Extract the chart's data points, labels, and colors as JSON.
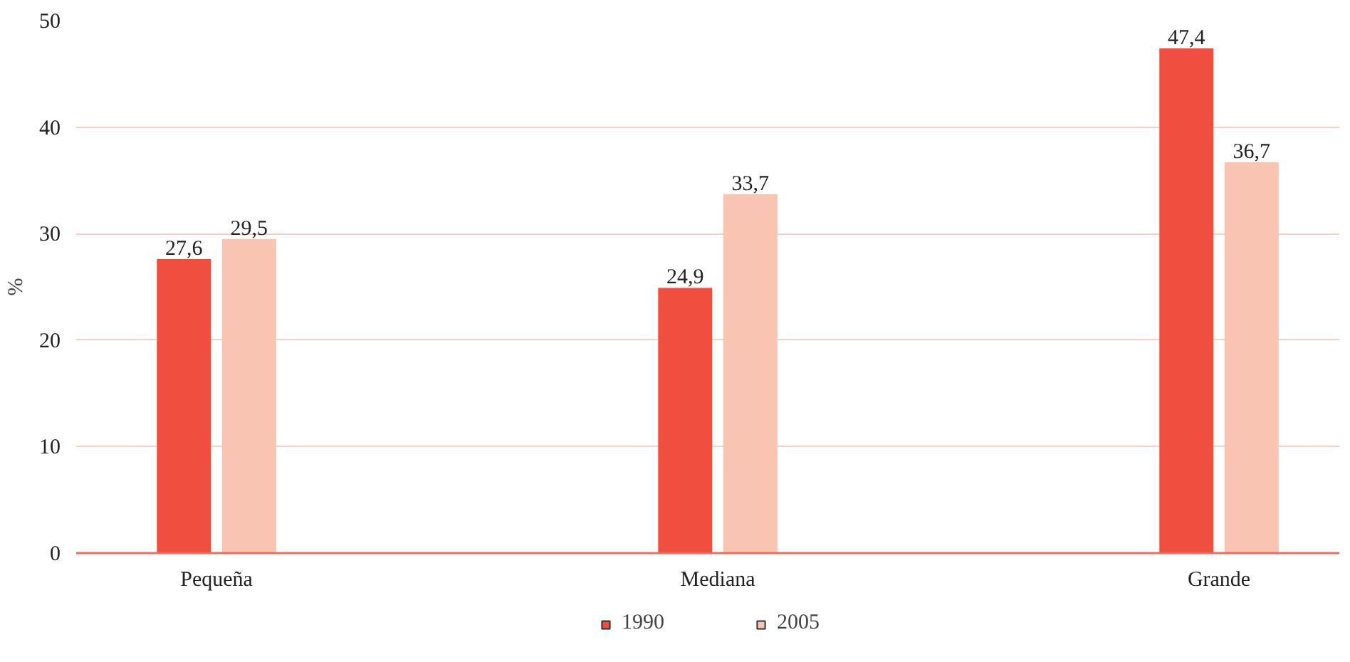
{
  "chart_data": {
    "type": "bar",
    "ylabel": "%",
    "categories": [
      "Pequeña",
      "Mediana",
      "Grande"
    ],
    "series": [
      {
        "name": "1990",
        "color": "#f04e3e",
        "values": [
          27.6,
          24.9,
          47.4
        ],
        "value_labels": [
          "27,6",
          "24,9",
          "47,4"
        ]
      },
      {
        "name": "2005",
        "color": "#f9c5b2",
        "values": [
          29.5,
          33.7,
          36.7
        ],
        "value_labels": [
          "29,5",
          "33,7",
          "36,7"
        ]
      }
    ],
    "ylim": [
      0,
      50
    ],
    "yticks": [
      0,
      10,
      20,
      30,
      40,
      50
    ],
    "grid": "y",
    "legend": "bottom"
  }
}
